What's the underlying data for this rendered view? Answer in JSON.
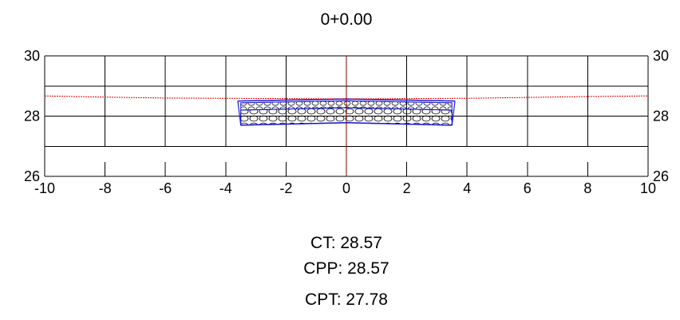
{
  "title": "0+0.00",
  "colors": {
    "terrain": "#e00000",
    "pavement": "#1a1ad6",
    "axis": "#800000",
    "grid": "#000000"
  },
  "chart_data": {
    "type": "line",
    "title": "0+0.00",
    "xlim": [
      -10,
      10
    ],
    "ylim": [
      26,
      30
    ],
    "x_ticks": [
      -10,
      -8,
      -6,
      -4,
      -2,
      0,
      2,
      4,
      6,
      8,
      10
    ],
    "x_tick_labels": [
      "-10",
      "-8",
      "-6",
      "-4",
      "-2",
      "0",
      "2",
      "4",
      "6",
      "8",
      "10"
    ],
    "y_ticks": [
      26,
      28,
      30
    ],
    "y_tick_labels": [
      "26",
      "28",
      "30"
    ],
    "y_gridlines": [
      26,
      27,
      28,
      29,
      30
    ],
    "grid": true,
    "series": [
      {
        "kind": "terrain",
        "points": [
          [
            -10,
            28.67
          ],
          [
            -8,
            28.63
          ],
          [
            -6,
            28.6
          ],
          [
            -4,
            28.59
          ],
          [
            -2,
            28.58
          ],
          [
            0,
            28.57
          ],
          [
            2,
            28.58
          ],
          [
            4,
            28.59
          ],
          [
            6,
            28.62
          ],
          [
            8,
            28.65
          ],
          [
            10,
            28.67
          ]
        ]
      },
      {
        "kind": "pavement-top",
        "points": [
          [
            -3.6,
            28.5
          ],
          [
            0,
            28.57
          ],
          [
            3.6,
            28.5
          ]
        ]
      },
      {
        "kind": "pavement-layer",
        "points": [
          [
            -3.5,
            28.2
          ],
          [
            0,
            28.28
          ],
          [
            3.5,
            28.2
          ]
        ]
      },
      {
        "kind": "pavement-bottom",
        "points": [
          [
            -3.5,
            27.7
          ],
          [
            0,
            27.78
          ],
          [
            3.5,
            27.7
          ]
        ]
      }
    ],
    "annotations": [
      {
        "label": "CT: 28.57",
        "value": 28.57
      },
      {
        "label": "CPP: 28.57",
        "value": 28.57
      },
      {
        "label": "CPT: 27.78",
        "value": 27.78
      }
    ]
  }
}
